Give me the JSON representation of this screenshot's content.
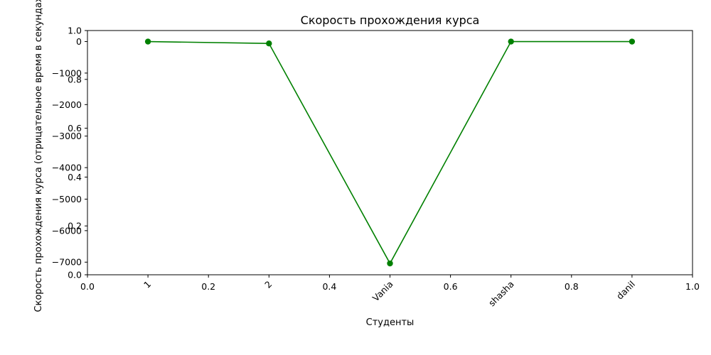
{
  "chart_data": {
    "type": "line",
    "title": "Скорость прохождения курса",
    "xlabel": "Студенты",
    "ylabel": "Скорость прохождения курса (отрицательное время в секундах)",
    "categories": [
      "1",
      "2",
      "Vania",
      "shasha",
      "danil"
    ],
    "series": [
      {
        "values": [
          0,
          -60,
          -7040,
          0,
          0
        ],
        "color": "#008000"
      }
    ],
    "ylim": [
      -7400,
      350
    ],
    "yticks": [
      0,
      -1000,
      -2000,
      -3000,
      -4000,
      -5000,
      -6000,
      -7000
    ],
    "ytick_labels": [
      "0",
      "−1000",
      "−2000",
      "−3000",
      "−4000",
      "−5000",
      "−6000",
      "−7000"
    ],
    "grid": false,
    "secondary_axes": {
      "xlim": [
        0.0,
        1.0
      ],
      "ylim": [
        0.0,
        1.0
      ],
      "ticks": [
        0.0,
        0.2,
        0.4,
        0.6,
        0.8,
        1.0
      ],
      "tick_labels": [
        "0.0",
        "0.2",
        "0.4",
        "0.6",
        "0.8",
        "1.0"
      ]
    }
  }
}
